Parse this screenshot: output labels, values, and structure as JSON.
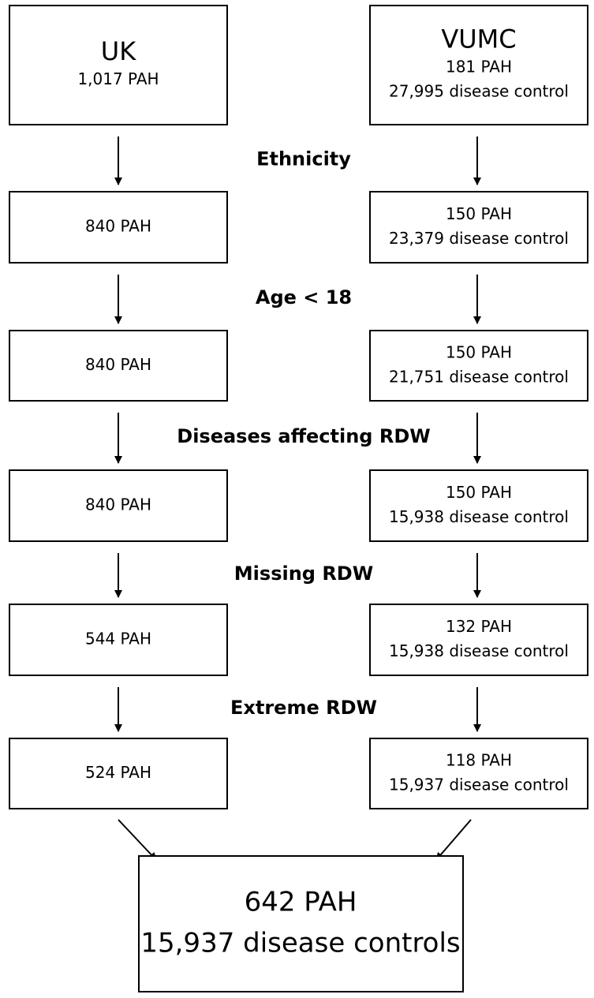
{
  "left": {
    "title": "UK",
    "boxes": [
      {
        "lines": [
          "1,017 PAH"
        ]
      },
      {
        "lines": [
          "840 PAH"
        ]
      },
      {
        "lines": [
          "840 PAH"
        ]
      },
      {
        "lines": [
          "840 PAH"
        ]
      },
      {
        "lines": [
          "544 PAH"
        ]
      },
      {
        "lines": [
          "524 PAH"
        ]
      }
    ]
  },
  "right": {
    "title": "VUMC",
    "boxes": [
      {
        "lines": [
          "181 PAH",
          "27,995 disease control"
        ]
      },
      {
        "lines": [
          "150 PAH",
          "23,379 disease control"
        ]
      },
      {
        "lines": [
          "150 PAH",
          "21,751 disease control"
        ]
      },
      {
        "lines": [
          "150 PAH",
          "15,938 disease control"
        ]
      },
      {
        "lines": [
          "132 PAH",
          "15,938 disease control"
        ]
      },
      {
        "lines": [
          "118 PAH",
          "15,937 disease control"
        ]
      }
    ]
  },
  "steps": [
    "Ethnicity",
    "Age < 18",
    "Diseases affecting RDW",
    "Missing RDW",
    "Extreme RDW"
  ],
  "result": {
    "lines": [
      "642 PAH",
      "15,937 disease controls"
    ]
  }
}
